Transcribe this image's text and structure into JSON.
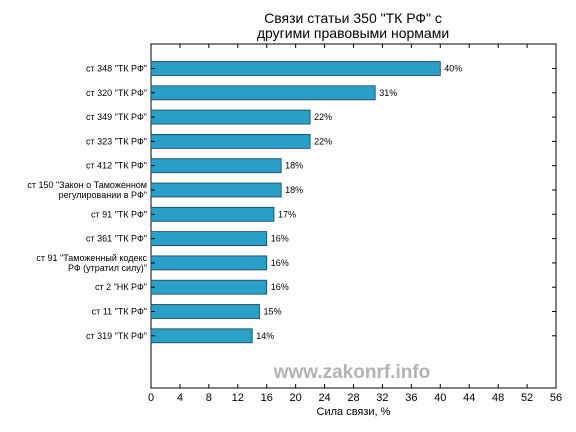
{
  "chart_data": {
    "type": "bar",
    "orientation": "horizontal",
    "title": [
      "Связи статьи 350 \"ТК РФ\" с",
      "другими правовыми нормами"
    ],
    "xlabel": "Сила связи, %",
    "ylabel": "",
    "xlim": [
      0,
      56
    ],
    "xticks": [
      0,
      4,
      8,
      12,
      16,
      20,
      24,
      28,
      32,
      36,
      40,
      44,
      48,
      52,
      56
    ],
    "value_suffix": "%",
    "bar_color": "#2aa0c8",
    "grid": false,
    "categories": [
      [
        "ст 348 \"ТК РФ\""
      ],
      [
        "ст 320 \"ТК РФ\""
      ],
      [
        "ст 349 \"ТК РФ\""
      ],
      [
        "ст 323 \"ТК РФ\""
      ],
      [
        "ст 412 \"ТК РФ\""
      ],
      [
        "ст 150 \"Закон о Таможенном",
        "регулировании в РФ\""
      ],
      [
        "ст 91 \"ТК РФ\""
      ],
      [
        "ст 361 \"ТК РФ\""
      ],
      [
        "ст 91 \"Таможенный кодекс",
        "РФ (утратил силу)\""
      ],
      [
        "ст 2 \"НК РФ\""
      ],
      [
        "ст 11 \"ТК РФ\""
      ],
      [
        "ст 319 \"ТК РФ\""
      ]
    ],
    "values": [
      40,
      31,
      22,
      22,
      18,
      18,
      17,
      16,
      16,
      16,
      15,
      14
    ],
    "watermark": "www.zakonrf.info"
  }
}
